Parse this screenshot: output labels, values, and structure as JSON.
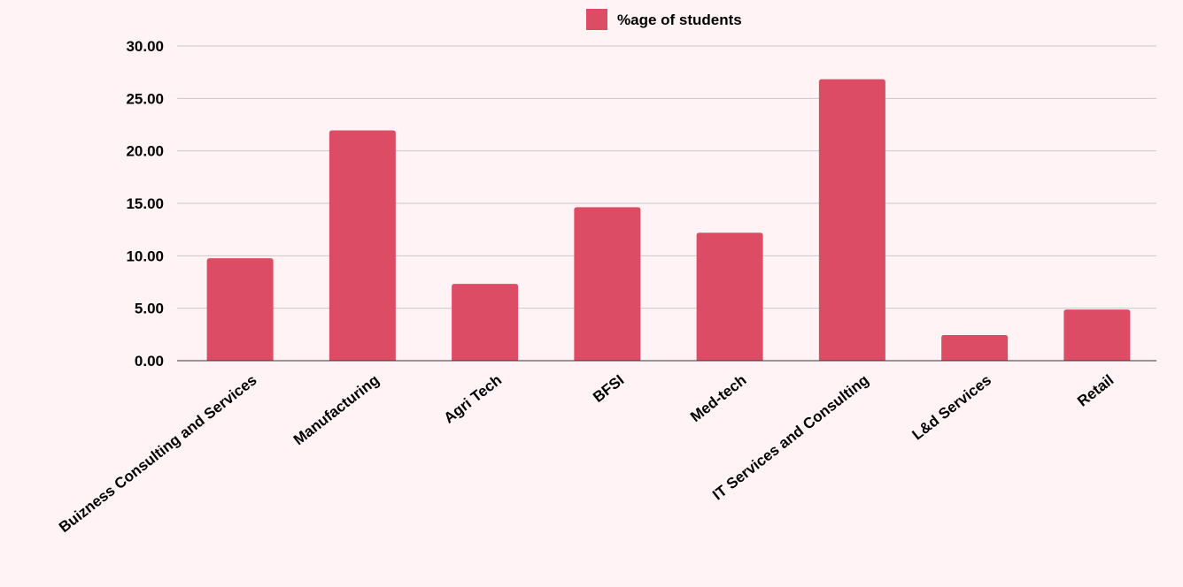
{
  "chart_data": {
    "type": "bar",
    "categories": [
      "Buizness Consulting and Services",
      "Manufacturing",
      "Agri Tech",
      "BFSI",
      "Med-tech",
      "IT Services and Consulting",
      "L&d Services",
      "Retail"
    ],
    "series": [
      {
        "name": "%age of students",
        "values": [
          9.76,
          21.95,
          7.32,
          14.63,
          12.2,
          26.83,
          2.44,
          4.88
        ]
      }
    ],
    "y_ticks": [
      "0.00",
      "5.00",
      "10.00",
      "15.00",
      "20.00",
      "25.00",
      "30.00"
    ],
    "ylim": [
      0,
      30
    ],
    "grid": true,
    "legend_position": "top-center",
    "colors": {
      "bar": "#dc4d65",
      "background": "#fff3f6",
      "grid": "#c8c8c8",
      "axis": "#333333"
    }
  }
}
